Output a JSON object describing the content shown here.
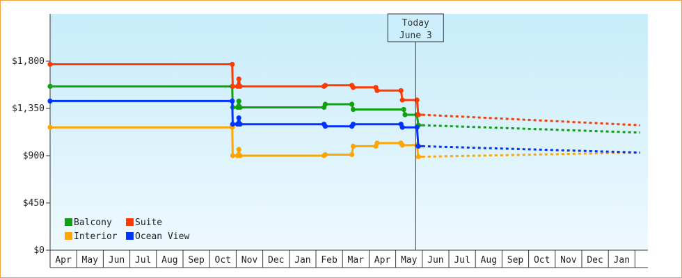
{
  "chart_data": {
    "type": "line",
    "title": "",
    "xlabel": "",
    "ylabel": "",
    "ylim": [
      0,
      2250
    ],
    "grid": false,
    "legend_position": "bottom-left",
    "y_ticks": [
      {
        "value": 0,
        "label": "$0"
      },
      {
        "value": 450,
        "label": "$450"
      },
      {
        "value": 900,
        "label": "$900"
      },
      {
        "value": 1350,
        "label": "$1,350"
      },
      {
        "value": 1800,
        "label": "$1,800"
      }
    ],
    "x_months": [
      "Apr",
      "May",
      "Jun",
      "Jul",
      "Aug",
      "Sep",
      "Oct",
      "Nov",
      "Dec",
      "Jan",
      "Feb",
      "Mar",
      "Apr",
      "May",
      "Jun",
      "Jul",
      "Aug",
      "Sep",
      "Oct",
      "Nov",
      "Dec",
      "Jan"
    ],
    "today": {
      "title": "Today",
      "date": "June 3",
      "month_index": 13.75
    },
    "colors": {
      "plot_top": "#c8ecfa",
      "plot_bottom": "#eef9fe",
      "axis": "#333333"
    },
    "series": [
      {
        "name": "Balcony",
        "color": "#11a011",
        "history": [
          [
            0,
            1560
          ],
          [
            6.85,
            1560
          ],
          [
            6.87,
            1360
          ],
          [
            7.05,
            1360
          ],
          [
            7.1,
            1420
          ],
          [
            7.15,
            1360
          ],
          [
            10.3,
            1360
          ],
          [
            10.35,
            1390
          ],
          [
            11.35,
            1390
          ],
          [
            11.4,
            1340
          ],
          [
            13.3,
            1340
          ],
          [
            13.35,
            1290
          ],
          [
            13.8,
            1290
          ],
          [
            13.85,
            1190
          ],
          [
            14.0,
            1190
          ]
        ],
        "forecast": [
          [
            14.0,
            1190
          ],
          [
            22.2,
            1120
          ]
        ]
      },
      {
        "name": "Suite",
        "color": "#ff3a00",
        "history": [
          [
            0,
            1770
          ],
          [
            6.85,
            1770
          ],
          [
            6.87,
            1560
          ],
          [
            7.05,
            1560
          ],
          [
            7.1,
            1630
          ],
          [
            7.15,
            1560
          ],
          [
            10.3,
            1560
          ],
          [
            10.35,
            1570
          ],
          [
            11.35,
            1570
          ],
          [
            11.4,
            1550
          ],
          [
            12.25,
            1550
          ],
          [
            12.3,
            1520
          ],
          [
            13.2,
            1520
          ],
          [
            13.25,
            1430
          ],
          [
            13.8,
            1430
          ],
          [
            13.85,
            1290
          ],
          [
            14.0,
            1290
          ]
        ],
        "forecast": [
          [
            14.0,
            1290
          ],
          [
            22.2,
            1190
          ]
        ]
      },
      {
        "name": "Interior",
        "color": "#ffa500",
        "history": [
          [
            0,
            1170
          ],
          [
            6.85,
            1170
          ],
          [
            6.87,
            900
          ],
          [
            7.05,
            900
          ],
          [
            7.1,
            960
          ],
          [
            7.15,
            900
          ],
          [
            10.3,
            900
          ],
          [
            10.35,
            910
          ],
          [
            11.35,
            910
          ],
          [
            11.4,
            990
          ],
          [
            12.25,
            990
          ],
          [
            12.3,
            1020
          ],
          [
            13.2,
            1020
          ],
          [
            13.25,
            1000
          ],
          [
            13.8,
            1000
          ],
          [
            13.85,
            890
          ],
          [
            14.0,
            890
          ]
        ],
        "forecast": [
          [
            14.0,
            890
          ],
          [
            22.2,
            930
          ]
        ]
      },
      {
        "name": "Ocean View",
        "color": "#0033ff",
        "history": [
          [
            0,
            1420
          ],
          [
            6.85,
            1420
          ],
          [
            6.87,
            1200
          ],
          [
            7.05,
            1200
          ],
          [
            7.1,
            1260
          ],
          [
            7.15,
            1200
          ],
          [
            10.3,
            1200
          ],
          [
            10.35,
            1180
          ],
          [
            11.35,
            1180
          ],
          [
            11.4,
            1200
          ],
          [
            13.2,
            1200
          ],
          [
            13.25,
            1170
          ],
          [
            13.8,
            1170
          ],
          [
            13.85,
            990
          ],
          [
            14.0,
            990
          ]
        ],
        "forecast": [
          [
            14.0,
            990
          ],
          [
            22.2,
            930
          ]
        ]
      }
    ]
  }
}
